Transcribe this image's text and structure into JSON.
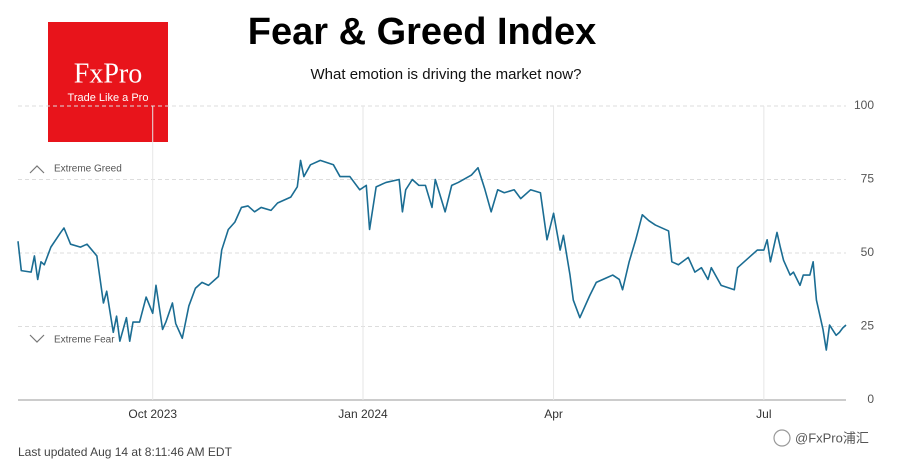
{
  "chart_data": {
    "type": "line",
    "title": "Fear & Greed Index",
    "subtitle": "What emotion is driving the market now?",
    "footer": "Last updated Aug 14 at 8:11:46 AM EDT",
    "logo": {
      "name": "FxPro",
      "tagline": "Trade Like a Pro"
    },
    "watermark": "@FxPro浦汇",
    "annotations": [
      "Extreme Greed",
      "Extreme Fear"
    ],
    "x": [
      0,
      1,
      4,
      5,
      6,
      7,
      8,
      10,
      13,
      14,
      16,
      19,
      21,
      24,
      26,
      27,
      29,
      30,
      31,
      33,
      34,
      35,
      37,
      39,
      41,
      42,
      44,
      45,
      47,
      48,
      50,
      52,
      54,
      56,
      58,
      61,
      62,
      64,
      66,
      68,
      70,
      72,
      74,
      77,
      79,
      83,
      85,
      86,
      87,
      89,
      92,
      96,
      98,
      101,
      104,
      106,
      107,
      109,
      112,
      116,
      117,
      118,
      120,
      122,
      124,
      126,
      127,
      130,
      132,
      134,
      138,
      140,
      142,
      144,
      146,
      148,
      151,
      153,
      156,
      159,
      161,
      163,
      165,
      166,
      168,
      169,
      171,
      174,
      176,
      179,
      181,
      183,
      184,
      186,
      188,
      190,
      192,
      194,
      198,
      199,
      201,
      204,
      206,
      208,
      210,
      211,
      214,
      218,
      219,
      221,
      223,
      225,
      227,
      228,
      229,
      231,
      232,
      233,
      235,
      236,
      238,
      239,
      241,
      242,
      243,
      245,
      246,
      247,
      249,
      250,
      251,
      252
    ],
    "values": [
      54,
      44,
      43.5,
      49,
      41,
      47,
      46,
      52,
      57,
      58.5,
      53,
      52,
      53,
      49,
      33,
      37,
      23,
      28.5,
      20,
      28,
      20,
      26.5,
      26.5,
      35,
      29.5,
      39,
      24,
      26.5,
      33,
      26,
      21,
      32,
      38,
      40,
      39,
      42,
      51,
      58,
      60.5,
      65.5,
      66,
      64,
      65.5,
      64.5,
      67,
      69,
      72.5,
      81.5,
      76,
      80,
      81.5,
      80,
      76,
      76,
      71.5,
      73,
      58,
      72.5,
      74,
      75,
      64,
      71.5,
      75,
      73,
      73,
      65.5,
      75,
      64,
      73,
      74,
      76.5,
      79,
      72,
      64,
      71.5,
      70.5,
      71.5,
      68.5,
      71.5,
      70.5,
      54.5,
      63.5,
      51,
      56,
      42.5,
      34,
      28,
      35.5,
      40,
      41.5,
      42.5,
      41,
      37.5,
      47,
      54.5,
      63,
      61,
      59.5,
      57.5,
      47,
      46,
      48.5,
      43.5,
      45,
      41,
      45,
      39,
      37.5,
      45,
      47,
      49,
      51,
      51,
      54.5,
      47,
      57,
      52,
      47.5,
      42.5,
      43.5,
      39,
      42.5,
      42.5,
      47,
      34,
      24,
      17,
      25.5,
      22,
      23,
      24.5,
      25.5
    ],
    "color": "#1b6d93",
    "xlim": [
      0,
      252
    ],
    "xticks": [
      {
        "value": 41,
        "label": "Oct 2023"
      },
      {
        "value": 105,
        "label": "Jan 2024"
      },
      {
        "value": 163,
        "label": "Apr"
      },
      {
        "value": 227,
        "label": "Jul"
      }
    ],
    "ylim": [
      0,
      100
    ],
    "yticks": [
      0,
      25,
      50,
      75,
      100
    ],
    "grid": true
  }
}
